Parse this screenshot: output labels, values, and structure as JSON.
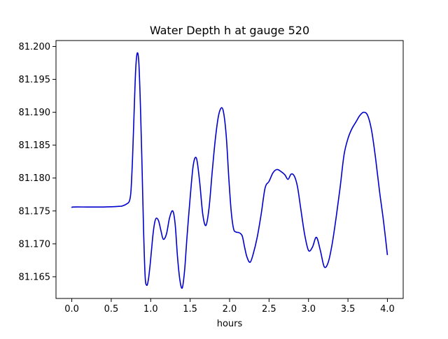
{
  "chart_data": {
    "type": "line",
    "title": "Water Depth h at gauge 520",
    "xlabel": "hours",
    "ylabel": "",
    "xlim": [
      -0.2,
      4.2
    ],
    "ylim": [
      81.1617,
      81.2009
    ],
    "xticks": [
      0.0,
      0.5,
      1.0,
      1.5,
      2.0,
      2.5,
      3.0,
      3.5,
      4.0
    ],
    "xtick_labels": [
      "0.0",
      "0.5",
      "1.0",
      "1.5",
      "2.0",
      "2.5",
      "3.0",
      "3.5",
      "4.0"
    ],
    "yticks": [
      81.165,
      81.17,
      81.175,
      81.18,
      81.185,
      81.19,
      81.195,
      81.2
    ],
    "ytick_labels": [
      "81.165",
      "81.170",
      "81.175",
      "81.180",
      "81.185",
      "81.190",
      "81.195",
      "81.200"
    ],
    "grid": false,
    "series": [
      {
        "name": "",
        "color": "#0000cc",
        "x": [
          0.0,
          0.02,
          0.2,
          0.4,
          0.6,
          0.65,
          0.7,
          0.73,
          0.75,
          0.77,
          0.79,
          0.81,
          0.83,
          0.85,
          0.87,
          0.89,
          0.91,
          0.93,
          0.95,
          0.97,
          0.99,
          1.01,
          1.03,
          1.05,
          1.07,
          1.1,
          1.13,
          1.16,
          1.2,
          1.24,
          1.28,
          1.31,
          1.34,
          1.37,
          1.4,
          1.43,
          1.46,
          1.5,
          1.54,
          1.58,
          1.62,
          1.66,
          1.7,
          1.74,
          1.78,
          1.82,
          1.86,
          1.9,
          1.93,
          1.96,
          1.99,
          2.02,
          2.05,
          2.08,
          2.12,
          2.16,
          2.19,
          2.22,
          2.26,
          2.3,
          2.35,
          2.4,
          2.45,
          2.5,
          2.55,
          2.6,
          2.65,
          2.7,
          2.74,
          2.78,
          2.82,
          2.86,
          2.9,
          2.95,
          3.0,
          3.05,
          3.1,
          3.15,
          3.2,
          3.25,
          3.3,
          3.35,
          3.4,
          3.45,
          3.5,
          3.55,
          3.6,
          3.65,
          3.7,
          3.75,
          3.8,
          3.85,
          3.9,
          3.95,
          4.0
        ],
        "y": [
          81.1755,
          81.1756,
          81.1756,
          81.1756,
          81.1757,
          81.1758,
          81.1761,
          81.1765,
          81.178,
          81.183,
          81.19,
          81.1965,
          81.199,
          81.1975,
          81.191,
          81.182,
          81.172,
          81.165,
          81.1637,
          81.1645,
          81.1665,
          81.169,
          81.1715,
          81.1732,
          81.1739,
          81.1735,
          81.172,
          81.1707,
          81.1715,
          81.174,
          81.175,
          81.173,
          81.168,
          81.1645,
          81.1633,
          81.166,
          81.171,
          81.177,
          81.182,
          81.183,
          81.1795,
          81.1745,
          81.1728,
          81.1755,
          81.181,
          81.186,
          81.1895,
          81.1907,
          81.1895,
          81.186,
          81.18,
          81.175,
          81.1723,
          81.1718,
          81.1717,
          81.1712,
          81.1695,
          81.168,
          81.1672,
          81.1685,
          81.171,
          81.1745,
          81.1785,
          81.1795,
          81.1808,
          81.1813,
          81.181,
          81.1805,
          81.1798,
          81.1806,
          81.1803,
          81.1787,
          81.1755,
          81.1715,
          81.169,
          81.1695,
          81.171,
          81.169,
          81.1665,
          81.1672,
          81.17,
          81.174,
          81.1785,
          81.1835,
          81.186,
          81.1875,
          81.1885,
          81.1895,
          81.19,
          81.1895,
          81.1872,
          81.183,
          81.178,
          81.1735,
          81.1683
        ]
      }
    ]
  }
}
